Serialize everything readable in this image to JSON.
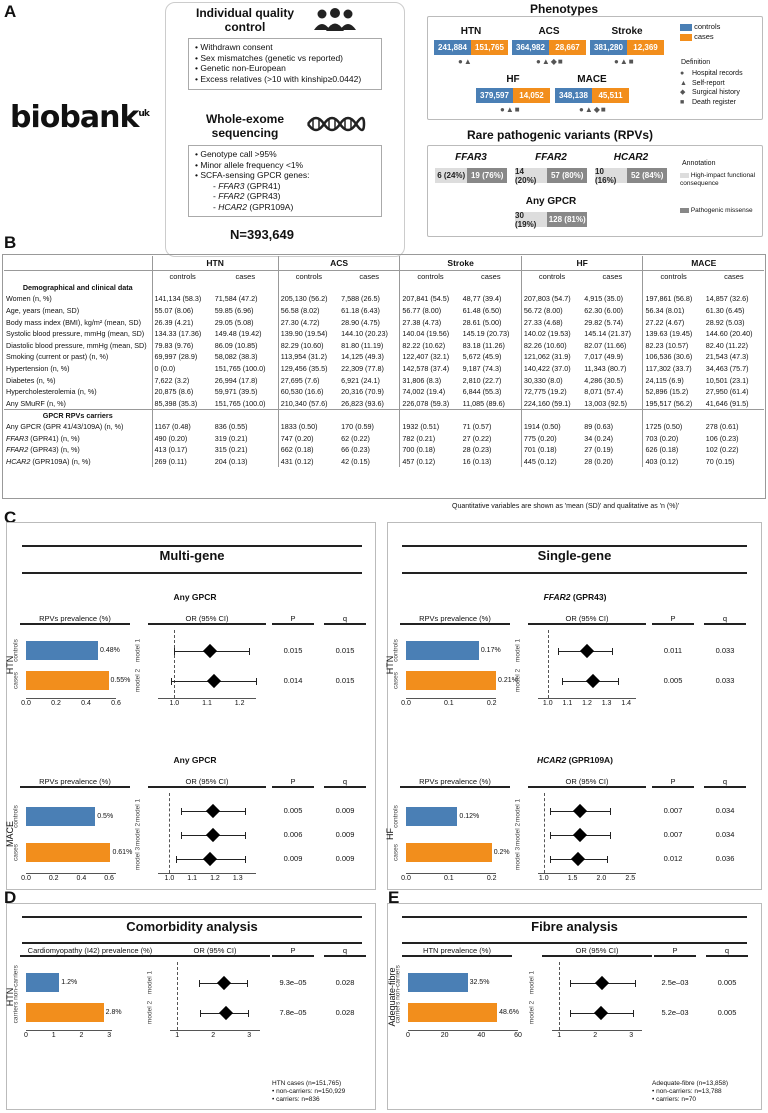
{
  "A": {
    "label": "A",
    "qc_title": "Individual quality control",
    "qc_items": [
      "Withdrawn consent",
      "Sex mismatches (genetic vs reported)",
      "Genetic non-European",
      "Excess relatives (>10 with kinship≥0.0442)"
    ],
    "logo": "biobank",
    "logo_sup": "uk",
    "wes_title": "Whole-exome sequencing",
    "wes_items": [
      "Genotype call >95%",
      "Minor allele frequency <1%",
      "SCFA-sensing GPCR genes:"
    ],
    "genes": [
      {
        "g": "FFAR3",
        "p": " (GPR41)"
      },
      {
        "g": "FFAR2",
        "p": " (GPR43)"
      },
      {
        "g": "HCAR2",
        "p": " (GPR109A)"
      }
    ],
    "n_label": "N=393,649",
    "phenotypes_title": "Phenotypes",
    "legend": {
      "controls": "controls",
      "cases": "cases"
    },
    "phenos": [
      {
        "name": "HTN",
        "ctrl": "241,884",
        "case": "151,765",
        "glyphs": "●▲"
      },
      {
        "name": "ACS",
        "ctrl": "364,982",
        "case": "28,667",
        "glyphs": "●▲◆■"
      },
      {
        "name": "Stroke",
        "ctrl": "381,280",
        "case": "12,369",
        "glyphs": "●▲■"
      },
      {
        "name": "HF",
        "ctrl": "379,597",
        "case": "14,052",
        "glyphs": "●▲■"
      },
      {
        "name": "MACE",
        "ctrl": "348,138",
        "case": "45,511",
        "glyphs": "●▲◆■"
      }
    ],
    "definition_title": "Definition",
    "definitions": [
      {
        "sym": "●",
        "t": "Hospital records"
      },
      {
        "sym": "▲",
        "t": "Self-report"
      },
      {
        "sym": "◆",
        "t": "Surgical history"
      },
      {
        "sym": "■",
        "t": "Death register"
      }
    ],
    "rpv_title": "Rare pathogenic variants (RPVs)",
    "rpvs": [
      {
        "gene": "FFAR3",
        "a": "6 (24%)",
        "b": "19 (76%)"
      },
      {
        "gene": "FFAR2",
        "a": "14 (20%)",
        "b": "57 (80%)"
      },
      {
        "gene": "HCAR2",
        "a": "10 (16%)",
        "b": "52 (84%)"
      },
      {
        "gene": "Any GPCR",
        "a": "30 (19%)",
        "b": "128 (81%)"
      }
    ],
    "annotation_title": "Annotation",
    "annotations": [
      "High-impact functional consequence",
      "Pathogenic missense"
    ]
  },
  "B": {
    "label": "B",
    "groups": [
      "HTN",
      "ACS",
      "Stroke",
      "HF",
      "MACE"
    ],
    "sub": [
      "controls",
      "cases"
    ],
    "sec1": "Demographical and clinical data",
    "rows1": [
      [
        "Women (n, %)",
        "141,134 (58.3)",
        "71,584 (47.2)",
        "205,130 (56.2)",
        "7,588 (26.5)",
        "207,841 (54.5)",
        "48,77 (39.4)",
        "207,803 (54.7)",
        "4,915 (35.0)",
        "197,861 (56.8)",
        "14,857 (32.6)"
      ],
      [
        "Age, years (mean, SD)",
        "55.07 (8.06)",
        "59.85 (6.96)",
        "56.58 (8.02)",
        "61.18 (6.43)",
        "56.77 (8.00)",
        "61.48 (6.50)",
        "56.72 (8.00)",
        "62.30 (6.00)",
        "56.34 (8.01)",
        "61.30 (6.45)"
      ],
      [
        "Body mass index (BMI), kg/m² (mean, SD)",
        "26.39 (4.21)",
        "29.05 (5.08)",
        "27.30 (4.72)",
        "28.90 (4.75)",
        "27.38 (4.73)",
        "28.61 (5.00)",
        "27.33 (4.68)",
        "29.82 (5.74)",
        "27.22 (4.67)",
        "28.92 (5.03)"
      ],
      [
        "Systolic blood pressure, mmHg (mean, SD)",
        "134.33 (17.36)",
        "149.48 (19.42)",
        "139.90 (19.54)",
        "144.10 (20.23)",
        "140.04 (19.56)",
        "145.19 (20.73)",
        "140.02 (19.53)",
        "145.14 (21.37)",
        "139.63 (19.45)",
        "144.60 (20.40)"
      ],
      [
        "Diastolic blood pressure, mmHg (mean, SD)",
        "79.83 (9.76)",
        "86.09 (10.85)",
        "82.29 (10.60)",
        "81.80 (11.19)",
        "82.22 (10.62)",
        "83.18 (11.26)",
        "82.26 (10.60)",
        "82.07 (11.66)",
        "82.23 (10.57)",
        "82.40 (11.22)"
      ],
      [
        "Smoking (current or past) (n, %)",
        "69,997 (28.9)",
        "58,082 (38.3)",
        "113,954 (31.2)",
        "14,125 (49.3)",
        "122,407 (32.1)",
        "5,672 (45.9)",
        "121,062 (31.9)",
        "7,017 (49.9)",
        "106,536 (30.6)",
        "21,543 (47.3)"
      ],
      [
        "Hypertension (n, %)",
        "0 (0.0)",
        "151,765 (100.0)",
        "129,456 (35.5)",
        "22,309 (77.8)",
        "142,578 (37.4)",
        "9,187 (74.3)",
        "140,422 (37.0)",
        "11,343 (80.7)",
        "117,302 (33.7)",
        "34,463 (75.7)"
      ],
      [
        "Diabetes (n, %)",
        "7,622 (3.2)",
        "26,994 (17.8)",
        "27,695 (7.6)",
        "6,921 (24.1)",
        "31,806 (8.3)",
        "2,810 (22.7)",
        "30,330 (8.0)",
        "4,286 (30.5)",
        "24,115 (6.9)",
        "10,501 (23.1)"
      ],
      [
        "Hypercholesterolemia (n, %)",
        "20,875 (8.6)",
        "59,971 (39.5)",
        "60,530 (16.6)",
        "20,316 (70.9)",
        "74,002 (19.4)",
        "6,844 (55.3)",
        "72,775 (19.2)",
        "8,071 (57.4)",
        "52,896 (15.2)",
        "27,950 (61.4)"
      ],
      [
        "Any SMuRF (n, %)",
        "85,398 (35.3)",
        "151,765 (100.0)",
        "210,340 (57.6)",
        "26,823 (93.6)",
        "226,078 (59.3)",
        "11,085 (89.6)",
        "224,160 (59.1)",
        "13,003 (92.5)",
        "195,517 (56.2)",
        "41,646 (91.5)"
      ]
    ],
    "sec2": "GPCR RPVs carriers",
    "rows2": [
      [
        "Any GPCR (GPR 41/43/109A) (n, %)",
        "1167 (0.48)",
        "836 (0.55)",
        "1833 (0.50)",
        "170 (0.59)",
        "1932 (0.51)",
        "71 (0.57)",
        "1914 (0.50)",
        "89 (0.63)",
        "1725 (0.50)",
        "278 (0.61)"
      ],
      [
        "FFAR3|(GPR41) (n, %)",
        "490 (0.20)",
        "319 (0.21)",
        "747 (0.20)",
        "62 (0.22)",
        "782 (0.21)",
        "27 (0.22)",
        "775 (0.20)",
        "34 (0.24)",
        "703 (0.20)",
        "106 (0.23)"
      ],
      [
        "FFAR2|(GPR43) (n, %)",
        "413 (0.17)",
        "315 (0.21)",
        "662 (0.18)",
        "66 (0.23)",
        "700 (0.18)",
        "28 (0.23)",
        "701 (0.18)",
        "27 (0.19)",
        "626 (0.18)",
        "102 (0.22)"
      ],
      [
        "HCAR2|(GPR109A) (n, %)",
        "269 (0.11)",
        "204 (0.13)",
        "431 (0.12)",
        "42 (0.15)",
        "457 (0.12)",
        "16 (0.13)",
        "445 (0.12)",
        "28 (0.20)",
        "403 (0.12)",
        "70 (0.15)"
      ]
    ],
    "footnote": "Quantitative variables are shown as 'mean (SD)' and qualitative as 'n (%)'"
  },
  "C": {
    "label": "C",
    "multi_title": "Multi-gene",
    "single_title": "Single-gene",
    "col_prev": "RPVs prevalence (%)",
    "col_or": "OR (95% CI)",
    "col_p": "P",
    "col_q": "q",
    "plots": [
      {
        "title": "Any GPCR",
        "title_gene": "",
        "group": "HTN",
        "rows": [
          "controls",
          "cases"
        ],
        "prev": [
          0.48,
          0.55
        ],
        "prev_lab": [
          "0.48%",
          "0.55%"
        ],
        "pmax": 0.6,
        "pticks": [
          "0.0",
          "0.2",
          "0.4",
          "0.6"
        ],
        "models": [
          "model 1",
          "model 2"
        ],
        "or": [
          1.11,
          1.12
        ],
        "lo": [
          1.0,
          0.99
        ],
        "hi": [
          1.23,
          1.25
        ],
        "omin": 0.95,
        "omax": 1.25,
        "oticks": [
          "1.0",
          "1.1",
          "1.2"
        ],
        "otv": [
          1.0,
          1.1,
          1.2
        ],
        "p": [
          "0.015",
          "0.014"
        ],
        "q": [
          "0.015",
          "0.015"
        ]
      },
      {
        "title": "",
        "title_gene": "FFAR2",
        "title_rest": " (GPR43)",
        "group": "HTN",
        "rows": [
          "controls",
          "cases"
        ],
        "prev": [
          0.17,
          0.21
        ],
        "prev_lab": [
          "0.17%",
          "0.21%"
        ],
        "pmax": 0.21,
        "pticks": [
          "0.0",
          "0.1",
          "0.2"
        ],
        "models": [
          "model 1",
          "model 2"
        ],
        "or": [
          1.2,
          1.23
        ],
        "lo": [
          1.05,
          1.07
        ],
        "hi": [
          1.33,
          1.36
        ],
        "omin": 0.95,
        "omax": 1.45,
        "oticks": [
          "1.0",
          "1.1",
          "1.2",
          "1.3",
          "1.4"
        ],
        "otv": [
          1.0,
          1.1,
          1.2,
          1.3,
          1.4
        ],
        "p": [
          "0.011",
          "0.005"
        ],
        "q": [
          "0.033",
          "0.033"
        ]
      },
      {
        "title": "Any GPCR",
        "title_gene": "",
        "group": "MACE",
        "rows": [
          "controls",
          "cases"
        ],
        "prev": [
          0.5,
          0.61
        ],
        "prev_lab": [
          "0.5%",
          "0.61%"
        ],
        "pmax": 0.65,
        "pticks": [
          "0.0",
          "0.2",
          "0.4",
          "0.6"
        ],
        "models": [
          "model 1",
          "model 2",
          "model 3"
        ],
        "or": [
          1.19,
          1.19,
          1.18
        ],
        "lo": [
          1.05,
          1.05,
          1.03
        ],
        "hi": [
          1.33,
          1.33,
          1.33
        ],
        "omin": 0.95,
        "omax": 1.38,
        "oticks": [
          "1.0",
          "1.1",
          "1.2",
          "1.3"
        ],
        "otv": [
          1.0,
          1.1,
          1.2,
          1.3
        ],
        "p": [
          "0.005",
          "0.006",
          "0.009"
        ],
        "q": [
          "0.009",
          "0.009",
          "0.009"
        ]
      },
      {
        "title": "",
        "title_gene": "HCAR2",
        "title_rest": " (GPR109A)",
        "group": "HF",
        "rows": [
          "controls",
          "cases"
        ],
        "prev": [
          0.12,
          0.2
        ],
        "prev_lab": [
          "0.12%",
          "0.2%"
        ],
        "pmax": 0.21,
        "pticks": [
          "0.0",
          "0.1",
          "0.2"
        ],
        "models": [
          "model 1",
          "model 2",
          "model 3"
        ],
        "or": [
          1.62,
          1.62,
          1.6
        ],
        "lo": [
          1.1,
          1.1,
          1.1
        ],
        "hi": [
          2.15,
          2.15,
          2.1
        ],
        "omin": 0.9,
        "omax": 2.6,
        "oticks": [
          "1.0",
          "1.5",
          "2.0",
          "2.5"
        ],
        "otv": [
          1.0,
          1.5,
          2.0,
          2.5
        ],
        "p": [
          "0.007",
          "0.007",
          "0.012"
        ],
        "q": [
          "0.034",
          "0.034",
          "0.036"
        ]
      }
    ]
  },
  "D": {
    "label": "D",
    "title": "Comorbidity analysis",
    "col_prev": "Cardiomyopathy (I42) prevalence (%)",
    "col_or": "OR (95% CI)",
    "col_p": "P",
    "col_q": "q",
    "group": "HTN",
    "rows": [
      "non-carriers",
      "carriers"
    ],
    "prev": [
      1.2,
      2.8
    ],
    "prev_lab": [
      "1.2%",
      "2.8%"
    ],
    "pmax": 3.1,
    "pticks": [
      "0",
      "1",
      "2",
      "3"
    ],
    "models": [
      "model 1",
      "model 2"
    ],
    "or": [
      2.3,
      2.35
    ],
    "lo": [
      1.6,
      1.62
    ],
    "hi": [
      2.95,
      2.98
    ],
    "omin": 0.8,
    "omax": 3.3,
    "oticks": [
      "1",
      "2",
      "3"
    ],
    "otv": [
      1,
      2,
      3
    ],
    "p": [
      "9.3e–05",
      "7.8e–05"
    ],
    "q": [
      "0.028",
      "0.028"
    ],
    "notes": [
      "HTN cases (n=151,765)",
      "• non-carriers: n=150,929",
      "• carriers: n=836"
    ]
  },
  "E": {
    "label": "E",
    "title": "Fibre analysis",
    "col_prev": "HTN prevalence (%)",
    "col_or": "OR (95% CI)",
    "col_p": "P",
    "col_q": "q",
    "group": "Adequate-fibre",
    "rows": [
      "non-carriers",
      "carriers"
    ],
    "prev": [
      32.5,
      48.6
    ],
    "prev_lab": [
      "32.5%",
      "48.6%"
    ],
    "pmax": 60,
    "pticks": [
      "0",
      "20",
      "40",
      "60"
    ],
    "models": [
      "model 1",
      "model 2"
    ],
    "or": [
      2.2,
      2.15
    ],
    "lo": [
      1.3,
      1.3
    ],
    "hi": [
      3.1,
      3.05
    ],
    "omin": 0.8,
    "omax": 3.3,
    "oticks": [
      "1",
      "2",
      "3"
    ],
    "otv": [
      1,
      2,
      3
    ],
    "p": [
      "2.5e–03",
      "5.2e–03"
    ],
    "q": [
      "0.005",
      "0.005"
    ],
    "notes": [
      "Adequate-fibre (n=13,858)",
      "• non-carriers: n=13,788",
      "• carriers: n=70"
    ]
  },
  "chart_data": [
    {
      "type": "bar",
      "title": "Any GPCR",
      "ylabel": "RPVs prevalence (%)",
      "categories": [
        "controls",
        "cases"
      ],
      "values": [
        0.48,
        0.55
      ],
      "group": "HTN"
    },
    {
      "type": "bar",
      "title": "FFAR2 (GPR43)",
      "ylabel": "RPVs prevalence (%)",
      "categories": [
        "controls",
        "cases"
      ],
      "values": [
        0.17,
        0.21
      ],
      "group": "HTN"
    },
    {
      "type": "bar",
      "title": "Any GPCR",
      "ylabel": "RPVs prevalence (%)",
      "categories": [
        "controls",
        "cases"
      ],
      "values": [
        0.5,
        0.61
      ],
      "group": "MACE"
    },
    {
      "type": "bar",
      "title": "HCAR2 (GPR109A)",
      "ylabel": "RPVs prevalence (%)",
      "categories": [
        "controls",
        "cases"
      ],
      "values": [
        0.12,
        0.2
      ],
      "group": "HF"
    },
    {
      "type": "bar",
      "title": "Comorbidity analysis",
      "ylabel": "Cardiomyopathy (I42) prevalence (%)",
      "categories": [
        "non-carriers",
        "carriers"
      ],
      "values": [
        1.2,
        2.8
      ]
    },
    {
      "type": "bar",
      "title": "Fibre analysis",
      "ylabel": "HTN prevalence (%)",
      "categories": [
        "non-carriers",
        "carriers"
      ],
      "values": [
        32.5,
        48.6
      ]
    }
  ]
}
